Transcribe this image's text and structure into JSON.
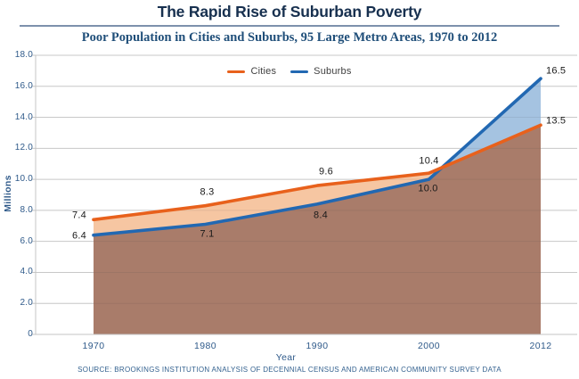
{
  "page": {
    "title": "The Rapid Rise of Suburban Poverty",
    "subtitle": "Poor Population in Cities and Suburbs, 95 Large Metro Areas, 1970 to 2012",
    "source": "SOURCE: BROOKINGS INSTITUTION ANALYSIS OF DECENNIAL CENSUS AND AMERICAN COMMUNITY SURVEY DATA"
  },
  "chart_data": {
    "type": "area",
    "categories": [
      "1970",
      "1980",
      "1990",
      "2000",
      "2012"
    ],
    "series": [
      {
        "name": "Cities",
        "color": "#E8611C",
        "fill": "#F6C6A2",
        "values": [
          7.4,
          8.3,
          9.6,
          10.4,
          13.5
        ]
      },
      {
        "name": "Suburbs",
        "color": "#2268B2",
        "fill": "#A5C3E1",
        "values": [
          6.4,
          7.1,
          8.4,
          10.0,
          16.5
        ]
      }
    ],
    "overlap_fill": "#A97C6A",
    "title": "The Rapid Rise of Suburban Poverty",
    "subtitle": "Poor Population in Cities and Suburbs, 95 Large Metro Areas, 1970 to 2012",
    "xlabel": "Year",
    "ylabel": "Millions",
    "ylim": [
      0,
      18
    ],
    "ytick_step": 2,
    "grid": "horizontal",
    "legend_position": "top-center",
    "value_label_format": "one-decimal"
  },
  "colors": {
    "title_text": "#17304F",
    "subtitle_text": "#1F4E79",
    "axis_text": "#2F5A8A",
    "value_label_text": "#1A1A1A",
    "divider_rule": "#7D91AC",
    "gridline": "#D8D8D8"
  }
}
